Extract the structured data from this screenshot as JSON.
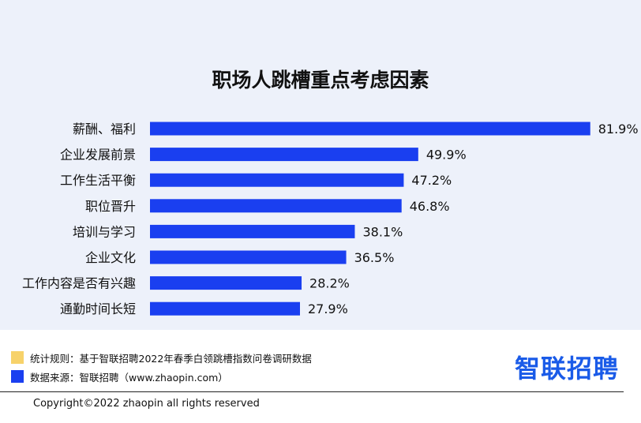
{
  "chart_data": {
    "type": "bar",
    "orientation": "horizontal",
    "title": "职场人跳槽重点考虑因素",
    "categories": [
      "薪酬、福利",
      "企业发展前景",
      "工作生活平衡",
      "职位晋升",
      "培训与学习",
      "企业文化",
      "工作内容是否有兴趣",
      "通勤时间长短"
    ],
    "values": [
      81.9,
      49.9,
      47.2,
      46.8,
      38.1,
      36.5,
      28.2,
      27.9
    ],
    "value_labels": [
      "81.9%",
      "49.9%",
      "47.2%",
      "46.8%",
      "38.1%",
      "36.5%",
      "28.2%",
      "27.9%"
    ],
    "unit": "%",
    "xlim": [
      0,
      100
    ],
    "grid": false,
    "bar_color": "#1a3ff0",
    "background_color": "#edf1fa"
  },
  "footer": {
    "legend": [
      {
        "text": "统计规则：基于智联招聘2022年春季白领跳槽指数问卷调研数据",
        "color": "#f7d26a"
      },
      {
        "text": "数据来源：智联招聘（www.zhaopin.com）",
        "color": "#1a3ff0"
      }
    ],
    "brand_logo": "智联招聘",
    "brand_color": "#1a5be8",
    "copyright": "Copyright©2022 zhaopin all rights reserved"
  }
}
